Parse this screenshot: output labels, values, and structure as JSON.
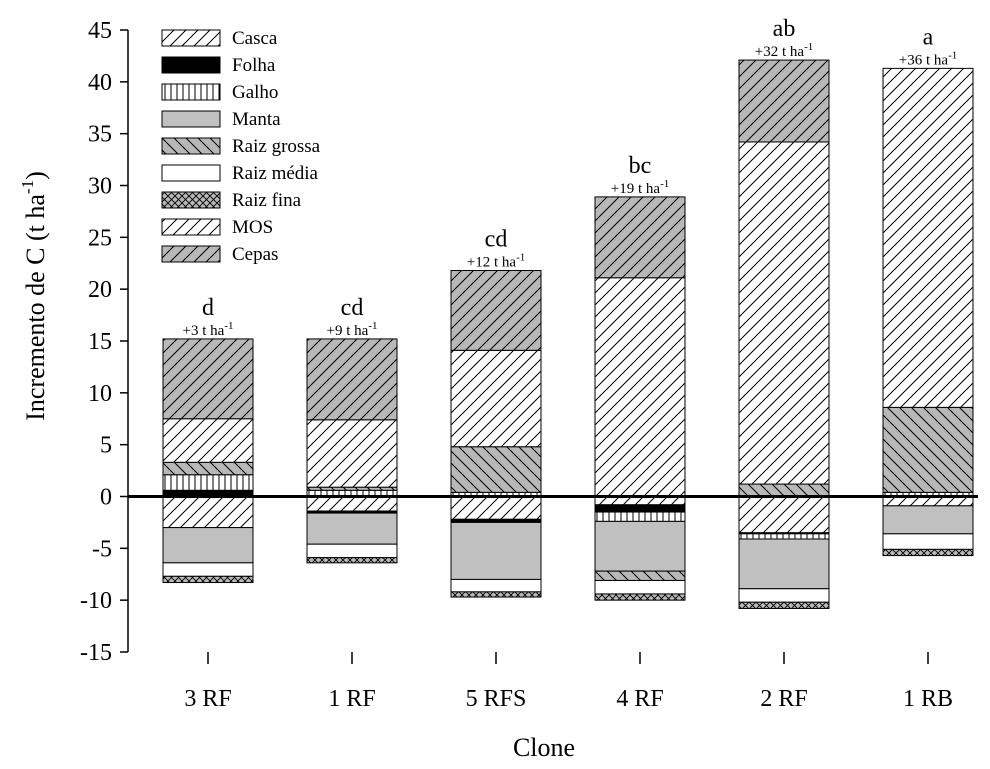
{
  "chart_data": {
    "type": "bar",
    "stacked": true,
    "xlabel": "Clone",
    "ylabel": {
      "main": "Incremento de C (t ha",
      "sup": "-1",
      "close": ")"
    },
    "ylim": [
      -15,
      45
    ],
    "yticks": [
      45,
      40,
      35,
      30,
      25,
      20,
      15,
      10,
      5,
      0,
      -5,
      -10,
      -15
    ],
    "zero_line": true,
    "legend_position": "top-left",
    "categories": [
      "3 RF",
      "1 RF",
      "5 RFS",
      "4 RF",
      "2 RF",
      "1 RB"
    ],
    "significance_letters": [
      "d",
      "cd",
      "cd",
      "bc",
      "ab",
      "a"
    ],
    "increment_labels": [
      {
        "text": "+3 t ha",
        "sup": "-1"
      },
      {
        "text": "+9 t ha",
        "sup": "-1"
      },
      {
        "text": "+12 t ha",
        "sup": "-1"
      },
      {
        "text": "+19 t ha",
        "sup": "-1"
      },
      {
        "text": "+32 t ha",
        "sup": "-1"
      },
      {
        "text": "+36 t ha",
        "sup": "-1"
      }
    ],
    "series": [
      {
        "name": "Casca",
        "pattern": "diag-light",
        "values": [
          -3.0,
          -1.4,
          -2.2,
          -0.8,
          -3.5,
          -0.9
        ]
      },
      {
        "name": "Folha",
        "pattern": "solid-black",
        "values": [
          0.6,
          -0.2,
          -0.3,
          -0.7,
          -0.1,
          0.1
        ]
      },
      {
        "name": "Galho",
        "pattern": "vertical",
        "values": [
          1.5,
          0.6,
          0.4,
          -0.9,
          -0.5,
          0.3
        ]
      },
      {
        "name": "Manta",
        "pattern": "solid-gray",
        "values": [
          -3.4,
          -3.0,
          -5.5,
          -4.8,
          -4.8,
          -2.7
        ]
      },
      {
        "name": "Raiz grossa",
        "pattern": "diag-back-gray",
        "values": [
          1.2,
          0.3,
          4.4,
          -0.9,
          1.2,
          8.2
        ]
      },
      {
        "name": "Raiz média",
        "pattern": "white",
        "values": [
          -1.3,
          -1.3,
          -1.2,
          -1.3,
          -1.3,
          -1.5
        ]
      },
      {
        "name": "Raiz fina",
        "pattern": "crosshatch",
        "values": [
          -0.6,
          -0.5,
          -0.5,
          -0.6,
          -0.6,
          -0.6
        ]
      },
      {
        "name": "MOS",
        "pattern": "diag-light",
        "values": [
          4.2,
          6.5,
          9.3,
          21.1,
          33.0,
          32.7
        ]
      },
      {
        "name": "Cepas",
        "pattern": "diag-gray",
        "values": [
          7.7,
          7.8,
          7.7,
          7.8,
          7.9,
          0
        ]
      }
    ]
  }
}
